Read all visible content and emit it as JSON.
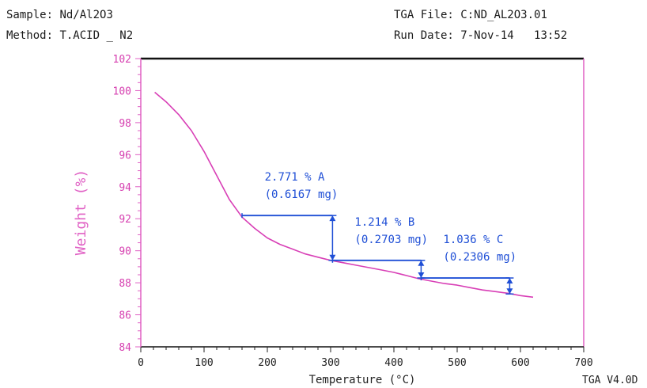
{
  "header": {
    "sample_label": "Sample:",
    "sample_value": "Nd/Al2O3",
    "method_label": "Method:",
    "method_value": "T.ACID _ N2",
    "file_label": "TGA File:",
    "file_value": "C:ND_AL2O3.01",
    "run_label": "Run Date:",
    "run_date": "7-Nov-14",
    "run_time": "13:52"
  },
  "footer": {
    "version": "TGA V4.0D"
  },
  "colors": {
    "curve": "#d83fb6",
    "annotation": "#1f4fd6",
    "axis_y": "#e060c4",
    "frame": "#111111"
  },
  "chart_data": {
    "type": "line",
    "xlabel": "Temperature (°C)",
    "ylabel": "Weight (%)",
    "xlim": [
      0,
      700
    ],
    "ylim": [
      84,
      102
    ],
    "xticks": [
      0,
      100,
      200,
      300,
      400,
      500,
      600,
      700
    ],
    "yticks": [
      84,
      86,
      88,
      90,
      92,
      94,
      96,
      98,
      100,
      102
    ],
    "grid": false,
    "series": [
      {
        "x": [
          22,
          40,
          60,
          80,
          100,
          120,
          140,
          160,
          180,
          200,
          220,
          240,
          260,
          280,
          300,
          320,
          340,
          360,
          380,
          400,
          420,
          440,
          460,
          480,
          500,
          520,
          540,
          560,
          580,
          600,
          620
        ],
        "y": [
          99.9,
          99.3,
          98.5,
          97.5,
          96.2,
          94.7,
          93.2,
          92.1,
          91.4,
          90.8,
          90.4,
          90.1,
          89.8,
          89.6,
          89.4,
          89.25,
          89.1,
          88.95,
          88.8,
          88.65,
          88.45,
          88.25,
          88.1,
          87.95,
          87.85,
          87.7,
          87.55,
          87.45,
          87.35,
          87.2,
          87.1
        ]
      }
    ],
    "annotations": [
      {
        "label": "2.771 % A",
        "sublabel": "(0.6167 mg)",
        "x_start": 160,
        "x_end": 303,
        "y_upper": 92.2,
        "y_lower": 89.4
      },
      {
        "label": "1.214 % B",
        "sublabel": "(0.2703 mg)",
        "x_start": 303,
        "x_end": 443,
        "y_upper": 89.4,
        "y_lower": 88.3
      },
      {
        "label": "1.036 % C",
        "sublabel": "(0.2306 mg)",
        "x_start": 443,
        "x_end": 583,
        "y_upper": 88.3,
        "y_lower": 87.3
      }
    ]
  }
}
